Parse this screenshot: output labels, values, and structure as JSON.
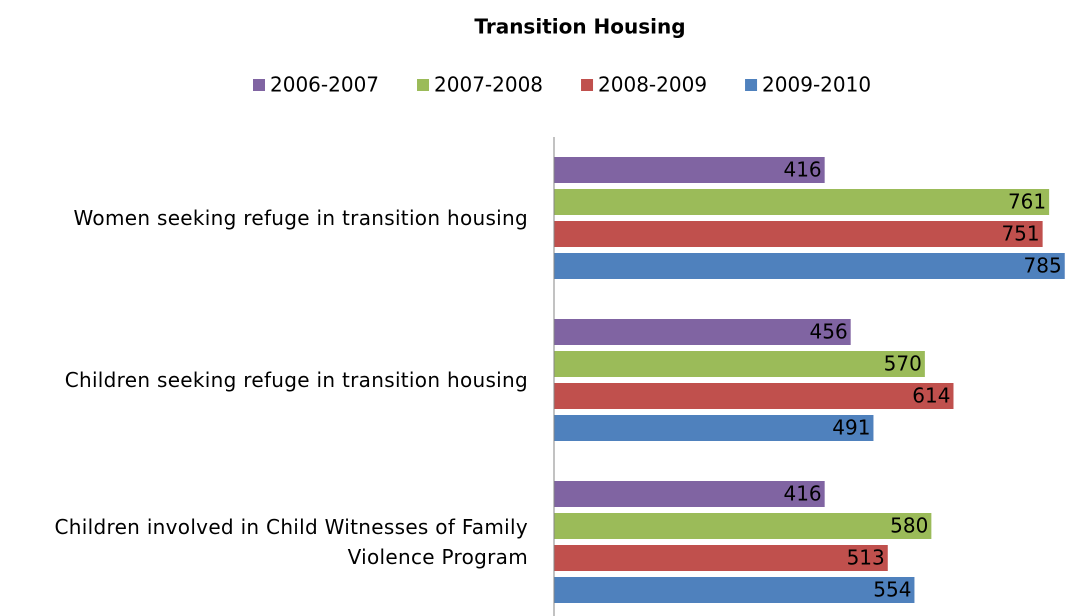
{
  "chart_data": {
    "type": "bar",
    "orientation": "horizontal",
    "title": "Transition Housing",
    "categories": [
      "Women seeking refuge in transition housing",
      "Children seeking refuge in transition housing",
      "Children involved in Child Witnesses of Family Violence Program"
    ],
    "series": [
      {
        "name": "2006-2007",
        "color": "#8064a2",
        "values": [
          416,
          456,
          416
        ]
      },
      {
        "name": "2007-2008",
        "color": "#9bbb59",
        "values": [
          761,
          570,
          580
        ]
      },
      {
        "name": "2008-2009",
        "color": "#c0504d",
        "values": [
          751,
          614,
          513
        ]
      },
      {
        "name": "2009-2010",
        "color": "#4f81bd",
        "values": [
          785,
          491,
          554
        ]
      }
    ],
    "xlim": [
      0,
      790
    ],
    "legend": "top",
    "grid": false
  }
}
